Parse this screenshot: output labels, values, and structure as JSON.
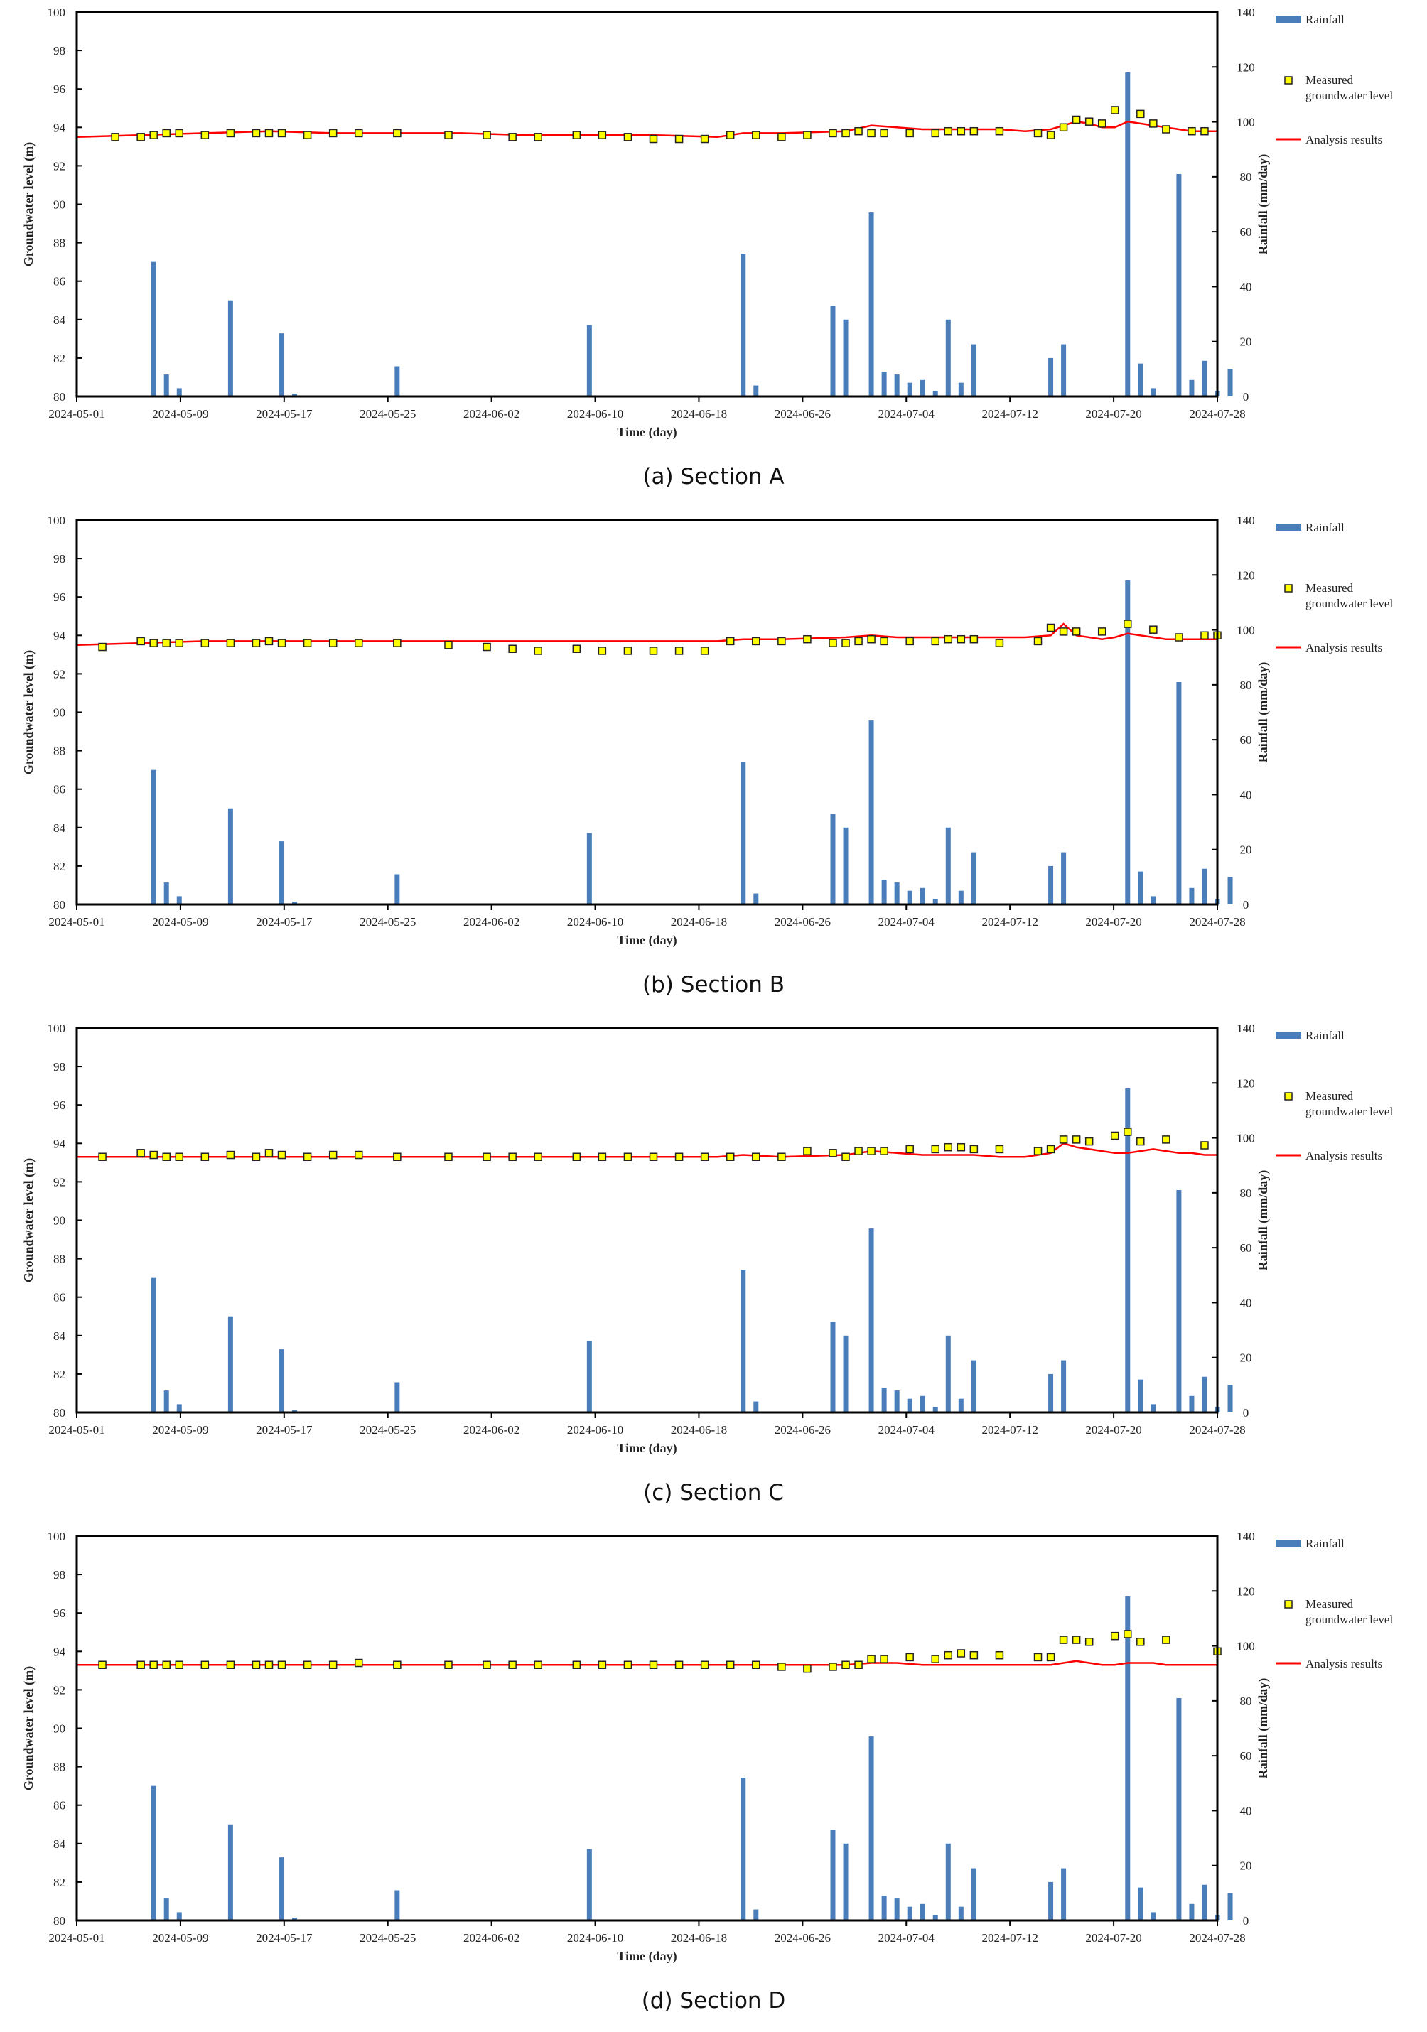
{
  "chart_data": [
    {
      "type": "bar",
      "caption": "(a) Section A",
      "xlabel": "Time (day)",
      "ylabel": "Groundwater  level (m)",
      "ylabel_right": "Rainfall (mm/day)",
      "ylim": [
        80,
        100
      ],
      "ylim_right": [
        0,
        140
      ],
      "yticks": [
        "80",
        "82",
        "84",
        "86",
        "88",
        "90",
        "92",
        "94",
        "96",
        "98",
        "100"
      ],
      "yticks_right": [
        "0",
        "20",
        "40",
        "60",
        "80",
        "100",
        "120",
        "140"
      ],
      "xticks": [
        "2024-05-01",
        "2024-05-09",
        "2024-05-17",
        "2024-05-25",
        "2024-06-02",
        "2024-06-10",
        "2024-06-18",
        "2024-06-26",
        "2024-07-04",
        "2024-07-12",
        "2024-07-20",
        "2024-07-28"
      ],
      "legend": [
        "Rainfall",
        "Measured groundwater level",
        "Analysis results"
      ],
      "x_days_range": [
        0,
        89
      ],
      "rain_day": [
        6,
        7,
        8,
        12,
        16,
        17,
        25,
        40,
        52,
        53,
        59,
        60,
        62,
        63,
        64,
        65,
        66,
        67,
        68,
        69,
        70,
        71,
        76,
        77,
        82,
        83,
        84,
        85,
        86,
        87,
        88,
        89,
        90
      ],
      "rain_value": [
        49,
        8,
        3,
        35,
        23,
        1,
        11,
        26,
        52,
        4,
        33,
        28,
        67,
        9,
        8,
        5,
        6,
        2,
        28,
        5,
        19,
        0,
        14,
        19,
        118,
        12,
        3,
        0,
        81,
        6,
        13,
        2,
        10
      ],
      "measured_day": [
        3,
        5,
        6,
        7,
        8,
        10,
        12,
        14,
        15,
        16,
        18,
        20,
        22,
        25,
        29,
        32,
        34,
        36,
        39,
        41,
        43,
        45,
        47,
        49,
        51,
        53,
        55,
        57,
        59,
        60,
        61,
        62,
        63,
        65,
        67,
        68,
        69,
        70,
        72,
        75,
        76,
        77,
        78,
        79,
        80,
        81,
        83,
        84,
        85,
        87,
        88
      ],
      "measured_value": [
        93.5,
        93.5,
        93.6,
        93.7,
        93.7,
        93.6,
        93.7,
        93.7,
        93.7,
        93.7,
        93.6,
        93.7,
        93.7,
        93.7,
        93.6,
        93.6,
        93.5,
        93.5,
        93.6,
        93.6,
        93.5,
        93.4,
        93.4,
        93.4,
        93.6,
        93.6,
        93.5,
        93.6,
        93.7,
        93.7,
        93.8,
        93.7,
        93.7,
        93.7,
        93.7,
        93.8,
        93.8,
        93.8,
        93.8,
        93.7,
        93.6,
        94.0,
        94.4,
        94.3,
        94.2,
        94.9,
        94.7,
        94.2,
        93.9,
        93.8,
        93.8
      ],
      "analysis_day": [
        0,
        5,
        10,
        15,
        20,
        25,
        30,
        35,
        40,
        45,
        50,
        52,
        55,
        60,
        62,
        64,
        66,
        68,
        70,
        72,
        74,
        76,
        77,
        78,
        79,
        80,
        81,
        82,
        83,
        84,
        85,
        86,
        87,
        88,
        89
      ],
      "analysis_value": [
        93.5,
        93.6,
        93.7,
        93.8,
        93.7,
        93.7,
        93.7,
        93.6,
        93.6,
        93.6,
        93.5,
        93.7,
        93.7,
        93.8,
        94.1,
        94.0,
        93.9,
        93.9,
        93.9,
        93.9,
        93.8,
        93.9,
        94.1,
        94.3,
        94.2,
        94.0,
        94.0,
        94.3,
        94.2,
        94.1,
        94.0,
        93.9,
        93.8,
        93.8,
        93.8
      ]
    },
    {
      "type": "bar",
      "caption": "(b) Section B",
      "xlabel": "Time (day)",
      "ylabel": "Groundwater  level (m)",
      "ylabel_right": "Rainfall (mm/day)",
      "ylim": [
        80,
        100
      ],
      "ylim_right": [
        0,
        140
      ],
      "yticks": [
        "80",
        "82",
        "84",
        "86",
        "88",
        "90",
        "92",
        "94",
        "96",
        "98",
        "100"
      ],
      "yticks_right": [
        "0",
        "20",
        "40",
        "60",
        "80",
        "100",
        "120",
        "140"
      ],
      "xticks": [
        "2024-05-01",
        "2024-05-09",
        "2024-05-17",
        "2024-05-25",
        "2024-06-02",
        "2024-06-10",
        "2024-06-18",
        "2024-06-26",
        "2024-07-04",
        "2024-07-12",
        "2024-07-20",
        "2024-07-28"
      ],
      "legend": [
        "Rainfall",
        "Measured groundwater level",
        "Analysis results"
      ],
      "x_days_range": [
        0,
        89
      ],
      "rain_day": [
        6,
        7,
        8,
        12,
        16,
        17,
        25,
        40,
        52,
        53,
        59,
        60,
        62,
        63,
        64,
        65,
        66,
        67,
        68,
        69,
        70,
        71,
        76,
        77,
        82,
        83,
        84,
        85,
        86,
        87,
        88,
        89,
        90
      ],
      "rain_value": [
        49,
        8,
        3,
        35,
        23,
        1,
        11,
        26,
        52,
        4,
        33,
        28,
        67,
        9,
        8,
        5,
        6,
        2,
        28,
        5,
        19,
        0,
        14,
        19,
        118,
        12,
        3,
        0,
        81,
        6,
        13,
        2,
        10
      ],
      "measured_day": [
        2,
        5,
        6,
        7,
        8,
        10,
        12,
        14,
        15,
        16,
        18,
        20,
        22,
        25,
        29,
        32,
        34,
        36,
        39,
        41,
        43,
        45,
        47,
        49,
        51,
        53,
        55,
        57,
        59,
        60,
        61,
        62,
        63,
        65,
        67,
        68,
        69,
        70,
        72,
        75,
        76,
        77,
        78,
        80,
        82,
        84,
        86,
        88,
        89
      ],
      "measured_value": [
        93.4,
        93.7,
        93.6,
        93.6,
        93.6,
        93.6,
        93.6,
        93.6,
        93.7,
        93.6,
        93.6,
        93.6,
        93.6,
        93.6,
        93.5,
        93.4,
        93.3,
        93.2,
        93.3,
        93.2,
        93.2,
        93.2,
        93.2,
        93.2,
        93.7,
        93.7,
        93.7,
        93.8,
        93.6,
        93.6,
        93.7,
        93.8,
        93.7,
        93.7,
        93.7,
        93.8,
        93.8,
        93.8,
        93.6,
        93.7,
        94.4,
        94.2,
        94.2,
        94.2,
        94.6,
        94.3,
        93.9,
        94.0,
        94.0
      ],
      "analysis_day": [
        0,
        5,
        10,
        15,
        20,
        25,
        30,
        35,
        40,
        45,
        50,
        52,
        55,
        60,
        62,
        64,
        66,
        68,
        70,
        72,
        74,
        76,
        77,
        78,
        79,
        80,
        81,
        82,
        83,
        84,
        85,
        86,
        87,
        88,
        89
      ],
      "analysis_value": [
        93.5,
        93.6,
        93.7,
        93.7,
        93.7,
        93.7,
        93.7,
        93.7,
        93.7,
        93.7,
        93.7,
        93.8,
        93.8,
        93.9,
        94.0,
        93.9,
        93.9,
        93.9,
        93.9,
        93.9,
        93.9,
        94.0,
        94.6,
        94.0,
        93.9,
        93.8,
        93.9,
        94.1,
        94.0,
        93.9,
        93.8,
        93.8,
        93.8,
        93.8,
        93.8
      ]
    },
    {
      "type": "bar",
      "caption": "(c) Section C",
      "xlabel": "Time (day)",
      "ylabel": "Groundwater  level (m)",
      "ylabel_right": "Rainfall (mm/day)",
      "ylim": [
        80,
        100
      ],
      "ylim_right": [
        0,
        140
      ],
      "yticks": [
        "80",
        "82",
        "84",
        "86",
        "88",
        "90",
        "92",
        "94",
        "96",
        "98",
        "100"
      ],
      "yticks_right": [
        "0",
        "20",
        "40",
        "60",
        "80",
        "100",
        "120",
        "140"
      ],
      "xticks": [
        "2024-05-01",
        "2024-05-09",
        "2024-05-17",
        "2024-05-25",
        "2024-06-02",
        "2024-06-10",
        "2024-06-18",
        "2024-06-26",
        "2024-07-04",
        "2024-07-12",
        "2024-07-20",
        "2024-07-28"
      ],
      "legend": [
        "Rainfall",
        "Measured groundwater level",
        "Analysis results"
      ],
      "x_days_range": [
        0,
        89
      ],
      "rain_day": [
        6,
        7,
        8,
        12,
        16,
        17,
        25,
        40,
        52,
        53,
        59,
        60,
        62,
        63,
        64,
        65,
        66,
        67,
        68,
        69,
        70,
        71,
        76,
        77,
        82,
        83,
        84,
        85,
        86,
        87,
        88,
        89,
        90
      ],
      "rain_value": [
        49,
        8,
        3,
        35,
        23,
        1,
        11,
        26,
        52,
        4,
        33,
        28,
        67,
        9,
        8,
        5,
        6,
        2,
        28,
        5,
        19,
        0,
        14,
        19,
        118,
        12,
        3,
        0,
        81,
        6,
        13,
        2,
        10
      ],
      "measured_day": [
        2,
        5,
        6,
        7,
        8,
        10,
        12,
        14,
        15,
        16,
        18,
        20,
        22,
        25,
        29,
        32,
        34,
        36,
        39,
        41,
        43,
        45,
        47,
        49,
        51,
        53,
        55,
        57,
        59,
        60,
        61,
        62,
        63,
        65,
        67,
        68,
        69,
        70,
        72,
        75,
        76,
        77,
        78,
        79,
        81,
        82,
        83,
        85,
        88
      ],
      "measured_value": [
        93.3,
        93.5,
        93.4,
        93.3,
        93.3,
        93.3,
        93.4,
        93.3,
        93.5,
        93.4,
        93.3,
        93.4,
        93.4,
        93.3,
        93.3,
        93.3,
        93.3,
        93.3,
        93.3,
        93.3,
        93.3,
        93.3,
        93.3,
        93.3,
        93.3,
        93.3,
        93.3,
        93.6,
        93.5,
        93.3,
        93.6,
        93.6,
        93.6,
        93.7,
        93.7,
        93.8,
        93.8,
        93.7,
        93.7,
        93.6,
        93.7,
        94.2,
        94.2,
        94.1,
        94.4,
        94.6,
        94.1,
        94.2,
        93.9
      ],
      "analysis_day": [
        0,
        5,
        10,
        15,
        20,
        25,
        30,
        35,
        40,
        45,
        50,
        52,
        55,
        60,
        62,
        64,
        66,
        68,
        70,
        72,
        74,
        76,
        77,
        78,
        79,
        80,
        81,
        82,
        83,
        84,
        85,
        86,
        87,
        88,
        89
      ],
      "analysis_value": [
        93.3,
        93.3,
        93.3,
        93.3,
        93.3,
        93.3,
        93.3,
        93.3,
        93.3,
        93.3,
        93.3,
        93.4,
        93.3,
        93.4,
        93.6,
        93.5,
        93.4,
        93.4,
        93.4,
        93.3,
        93.3,
        93.5,
        94.0,
        93.8,
        93.7,
        93.6,
        93.5,
        93.5,
        93.6,
        93.7,
        93.6,
        93.5,
        93.5,
        93.4,
        93.4
      ]
    },
    {
      "type": "bar",
      "caption": "(d) Section D",
      "xlabel": "Time (day)",
      "ylabel": "Groundwater  level (m)",
      "ylabel_right": "Rainfall (mm/day)",
      "ylim": [
        80,
        100
      ],
      "ylim_right": [
        0,
        140
      ],
      "yticks": [
        "80",
        "82",
        "84",
        "86",
        "88",
        "90",
        "92",
        "94",
        "96",
        "98",
        "100"
      ],
      "yticks_right": [
        "0",
        "20",
        "40",
        "60",
        "80",
        "100",
        "120",
        "140"
      ],
      "xticks": [
        "2024-05-01",
        "2024-05-09",
        "2024-05-17",
        "2024-05-25",
        "2024-06-02",
        "2024-06-10",
        "2024-06-18",
        "2024-06-26",
        "2024-07-04",
        "2024-07-12",
        "2024-07-20",
        "2024-07-28"
      ],
      "legend": [
        "Rainfall",
        "Measured groundwater level",
        "Analysis results"
      ],
      "x_days_range": [
        0,
        89
      ],
      "rain_day": [
        6,
        7,
        8,
        12,
        16,
        17,
        25,
        40,
        52,
        53,
        59,
        60,
        62,
        63,
        64,
        65,
        66,
        67,
        68,
        69,
        70,
        71,
        76,
        77,
        82,
        83,
        84,
        85,
        86,
        87,
        88,
        89,
        90
      ],
      "rain_value": [
        49,
        8,
        3,
        35,
        23,
        1,
        11,
        26,
        52,
        4,
        33,
        28,
        67,
        9,
        8,
        5,
        6,
        2,
        28,
        5,
        19,
        0,
        14,
        19,
        118,
        12,
        3,
        0,
        81,
        6,
        13,
        2,
        10
      ],
      "measured_day": [
        2,
        5,
        6,
        7,
        8,
        10,
        12,
        14,
        15,
        16,
        18,
        20,
        22,
        25,
        29,
        32,
        34,
        36,
        39,
        41,
        43,
        45,
        47,
        49,
        51,
        53,
        55,
        57,
        59,
        60,
        61,
        62,
        63,
        65,
        67,
        68,
        69,
        70,
        72,
        75,
        76,
        77,
        78,
        79,
        81,
        82,
        83,
        85,
        89
      ],
      "measured_value": [
        93.3,
        93.3,
        93.3,
        93.3,
        93.3,
        93.3,
        93.3,
        93.3,
        93.3,
        93.3,
        93.3,
        93.3,
        93.4,
        93.3,
        93.3,
        93.3,
        93.3,
        93.3,
        93.3,
        93.3,
        93.3,
        93.3,
        93.3,
        93.3,
        93.3,
        93.3,
        93.2,
        93.1,
        93.2,
        93.3,
        93.3,
        93.6,
        93.6,
        93.7,
        93.6,
        93.8,
        93.9,
        93.8,
        93.8,
        93.7,
        93.7,
        94.6,
        94.6,
        94.5,
        94.8,
        94.9,
        94.5,
        94.6,
        94.0
      ],
      "analysis_day": [
        0,
        5,
        10,
        15,
        20,
        25,
        30,
        35,
        40,
        45,
        50,
        52,
        55,
        60,
        62,
        64,
        66,
        68,
        70,
        72,
        74,
        76,
        77,
        78,
        79,
        80,
        81,
        82,
        83,
        84,
        85,
        86,
        87,
        88,
        89
      ],
      "analysis_value": [
        93.3,
        93.3,
        93.3,
        93.3,
        93.3,
        93.3,
        93.3,
        93.3,
        93.3,
        93.3,
        93.3,
        93.3,
        93.3,
        93.3,
        93.4,
        93.4,
        93.3,
        93.3,
        93.3,
        93.3,
        93.3,
        93.3,
        93.4,
        93.5,
        93.4,
        93.3,
        93.3,
        93.4,
        93.4,
        93.4,
        93.3,
        93.3,
        93.3,
        93.3,
        93.3
      ]
    }
  ],
  "colors": {
    "rain": "#4a7ebb",
    "measured_fill": "#ffff00",
    "measured_edge": "#222222",
    "analysis": "#ff0000"
  }
}
